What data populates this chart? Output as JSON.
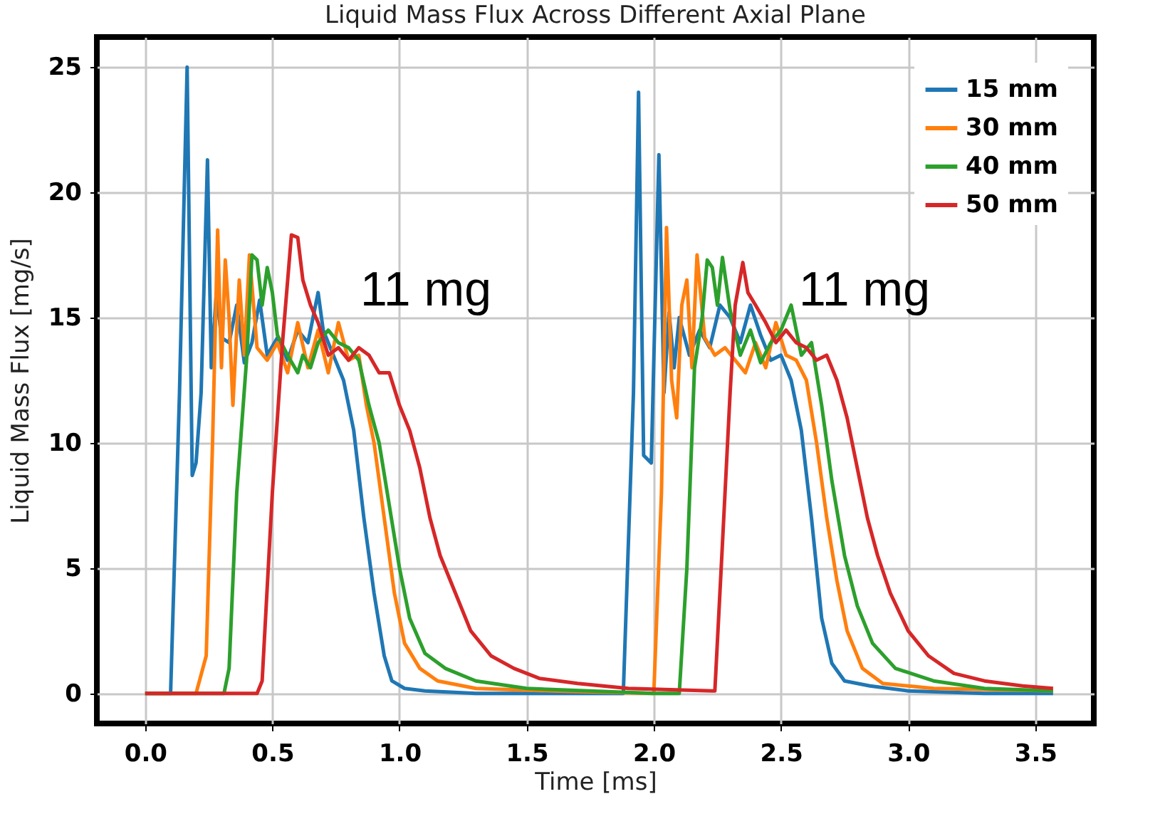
{
  "chart_data": {
    "type": "line",
    "title": "Liquid Mass Flux Across Different Axial Plane",
    "xlabel": "Time [ms]",
    "ylabel": "Liquid Mass Flux [mg/s]",
    "xlim": [
      -0.19,
      3.73
    ],
    "ylim": [
      -1.2,
      26.2
    ],
    "xticks": [
      {
        "value": 0,
        "label": "0.0"
      },
      {
        "value": 0.5,
        "label": "0.5"
      },
      {
        "value": 1,
        "label": "1.0"
      },
      {
        "value": 1.5,
        "label": "1.5"
      },
      {
        "value": 2,
        "label": "2.0"
      },
      {
        "value": 2.5,
        "label": "2.5"
      },
      {
        "value": 3,
        "label": "3.0"
      },
      {
        "value": 3.5,
        "label": "3.5"
      }
    ],
    "yticks": [
      0,
      5,
      10,
      15,
      20,
      25
    ],
    "grid": true,
    "legend": "top right",
    "line_style": "solid",
    "marker": "none",
    "annotations": [
      "11 mg",
      "11 mg"
    ],
    "series": [
      {
        "name": "15 mm",
        "color": "#1f77b4",
        "x": [
          0,
          0.1,
          0.135,
          0.165,
          0.185,
          0.2,
          0.22,
          0.245,
          0.26,
          0.28,
          0.3,
          0.33,
          0.36,
          0.39,
          0.42,
          0.45,
          0.48,
          0.52,
          0.56,
          0.6,
          0.64,
          0.68,
          0.7,
          0.74,
          0.78,
          0.82,
          0.86,
          0.9,
          0.94,
          0.97,
          1.02,
          1.1,
          1.3,
          1.6,
          1.88,
          1.92,
          1.94,
          1.96,
          1.99,
          2.02,
          2.04,
          2.06,
          2.08,
          2.1,
          2.14,
          2.18,
          2.22,
          2.26,
          2.3,
          2.34,
          2.38,
          2.42,
          2.46,
          2.5,
          2.54,
          2.58,
          2.62,
          2.66,
          2.7,
          2.75,
          2.85,
          3.0,
          3.3,
          3.57
        ],
        "values": [
          0,
          0,
          12,
          25,
          8.7,
          9.2,
          12,
          21.3,
          13,
          16,
          14.2,
          14,
          15.5,
          13.2,
          14,
          15.7,
          13.5,
          14.2,
          13.3,
          14.5,
          14,
          16,
          14.5,
          13.5,
          12.5,
          10.5,
          7,
          4,
          1.5,
          0.5,
          0.2,
          0.1,
          0,
          0,
          0,
          12,
          24,
          9.5,
          9.2,
          21.5,
          12,
          15.2,
          13,
          15,
          13.5,
          14.5,
          13.8,
          15.5,
          15,
          14,
          15.5,
          14.3,
          13.3,
          13.5,
          12.5,
          10.5,
          7,
          3,
          1.2,
          0.5,
          0.3,
          0.1,
          0,
          0
        ]
      },
      {
        "name": "30 mm",
        "color": "#ff7f0e",
        "x": [
          0,
          0.2,
          0.24,
          0.265,
          0.285,
          0.3,
          0.315,
          0.33,
          0.345,
          0.37,
          0.39,
          0.41,
          0.44,
          0.48,
          0.52,
          0.56,
          0.6,
          0.64,
          0.68,
          0.72,
          0.76,
          0.8,
          0.84,
          0.87,
          0.9,
          0.94,
          0.98,
          1.02,
          1.08,
          1.15,
          1.3,
          1.6,
          2.0,
          2.03,
          2.05,
          2.07,
          2.09,
          2.11,
          2.13,
          2.15,
          2.17,
          2.2,
          2.24,
          2.28,
          2.32,
          2.36,
          2.4,
          2.44,
          2.48,
          2.52,
          2.56,
          2.6,
          2.64,
          2.68,
          2.72,
          2.76,
          2.82,
          2.9,
          3.1,
          3.57
        ],
        "values": [
          0,
          0,
          1.5,
          10,
          18.5,
          13,
          17.3,
          15,
          11.5,
          16.5,
          13.5,
          17.5,
          13.8,
          13.3,
          14,
          12.8,
          14.8,
          13,
          14.5,
          12.8,
          14.8,
          13.3,
          13.5,
          11.5,
          10,
          7,
          4,
          2,
          1,
          0.5,
          0.2,
          0.1,
          0,
          8,
          18.6,
          12.5,
          11,
          15.5,
          16.5,
          13,
          17.5,
          14.2,
          13.5,
          13.8,
          13.3,
          12.8,
          14,
          13,
          14.8,
          13.5,
          13.3,
          12.5,
          10,
          7,
          4.5,
          2.5,
          1,
          0.4,
          0.2,
          0.1
        ]
      },
      {
        "name": "40 mm",
        "color": "#2ca02c",
        "x": [
          0,
          0.31,
          0.33,
          0.36,
          0.4,
          0.42,
          0.44,
          0.46,
          0.48,
          0.5,
          0.52,
          0.56,
          0.6,
          0.62,
          0.65,
          0.68,
          0.72,
          0.76,
          0.8,
          0.84,
          0.88,
          0.92,
          0.96,
          1.0,
          1.04,
          1.1,
          1.18,
          1.3,
          1.5,
          2.0,
          2.1,
          2.13,
          2.16,
          2.19,
          2.21,
          2.23,
          2.25,
          2.27,
          2.3,
          2.34,
          2.38,
          2.42,
          2.46,
          2.5,
          2.54,
          2.58,
          2.62,
          2.66,
          2.7,
          2.75,
          2.8,
          2.86,
          2.95,
          3.1,
          3.3,
          3.57
        ],
        "values": [
          0,
          0,
          1,
          8,
          13.5,
          17.5,
          17.3,
          15.5,
          17,
          16,
          14.3,
          13.5,
          12.8,
          13.5,
          13,
          14,
          14.5,
          14,
          13.8,
          13.3,
          11.5,
          10,
          7.5,
          5,
          3,
          1.6,
          1,
          0.5,
          0.2,
          0,
          0,
          5,
          13,
          15,
          17.3,
          17,
          15.5,
          17.4,
          15.3,
          13.5,
          14.5,
          13.2,
          14,
          14.5,
          15.5,
          13.5,
          14,
          11.5,
          8.5,
          5.5,
          3.5,
          2,
          1,
          0.5,
          0.2,
          0.1
        ]
      },
      {
        "name": "50 mm",
        "color": "#d62728",
        "x": [
          0,
          0.44,
          0.46,
          0.5,
          0.54,
          0.575,
          0.6,
          0.62,
          0.65,
          0.68,
          0.72,
          0.76,
          0.8,
          0.84,
          0.88,
          0.92,
          0.96,
          1.0,
          1.04,
          1.08,
          1.12,
          1.16,
          1.22,
          1.28,
          1.36,
          1.45,
          1.55,
          1.7,
          1.9,
          2.23,
          2.24,
          2.27,
          2.3,
          2.32,
          2.35,
          2.37,
          2.4,
          2.44,
          2.48,
          2.52,
          2.56,
          2.6,
          2.64,
          2.68,
          2.72,
          2.76,
          2.8,
          2.84,
          2.88,
          2.93,
          3.0,
          3.08,
          3.18,
          3.3,
          3.45,
          3.57
        ],
        "values": [
          0,
          0,
          0.5,
          8,
          14,
          18.3,
          18.2,
          16.5,
          15.5,
          14.8,
          13.5,
          13.8,
          13.3,
          13.8,
          13.5,
          12.8,
          12.8,
          11.5,
          10.5,
          9,
          7,
          5.5,
          4,
          2.5,
          1.5,
          1,
          0.6,
          0.4,
          0.2,
          0.1,
          0.1,
          6,
          12,
          15.5,
          17.2,
          16,
          15.5,
          14.8,
          14,
          14.5,
          14,
          13.8,
          13.3,
          13.5,
          12.5,
          11,
          9,
          7,
          5.5,
          4,
          2.5,
          1.5,
          0.8,
          0.5,
          0.3,
          0.2
        ]
      }
    ]
  }
}
